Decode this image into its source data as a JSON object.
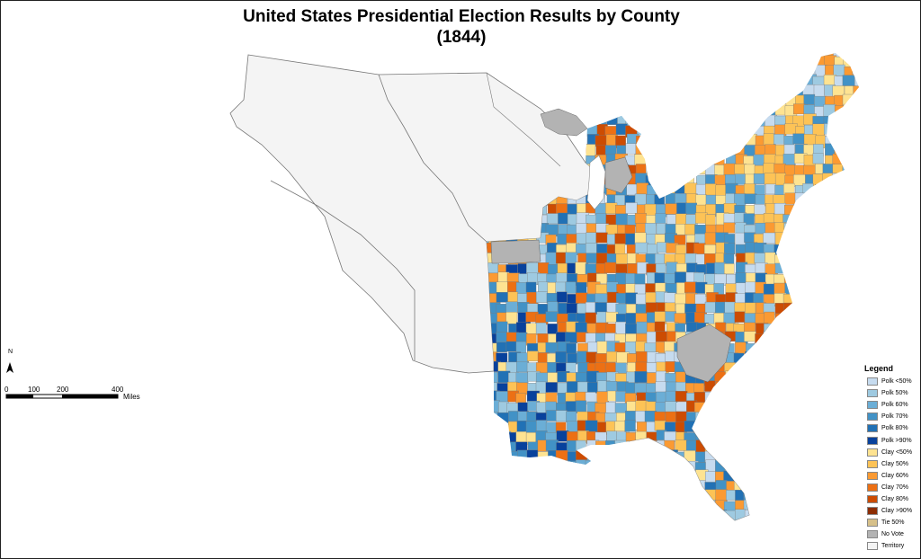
{
  "title": {
    "line1": "United States Presidential Election Results by County",
    "line2": "(1844)"
  },
  "legend": {
    "title": "Legend",
    "items": [
      {
        "label": "Polk <50%",
        "color": "#c6dbef"
      },
      {
        "label": "Polk 50%",
        "color": "#9ecae1"
      },
      {
        "label": "Polk 60%",
        "color": "#6baed6"
      },
      {
        "label": "Polk 70%",
        "color": "#4292c6"
      },
      {
        "label": "Polk 80%",
        "color": "#2171b5"
      },
      {
        "label": "Polk >90%",
        "color": "#08419c"
      },
      {
        "label": "Clay <50%",
        "color": "#fee391"
      },
      {
        "label": "Clay 50%",
        "color": "#fdc356"
      },
      {
        "label": "Clay 60%",
        "color": "#fb9a32"
      },
      {
        "label": "Clay 70%",
        "color": "#ec7014"
      },
      {
        "label": "Clay 80%",
        "color": "#cc4c02"
      },
      {
        "label": "Clay >90%",
        "color": "#8c2d04"
      },
      {
        "label": "Tie 50%",
        "color": "#d6c08a"
      },
      {
        "label": "No Vote",
        "color": "#b3b3b3"
      },
      {
        "label": "Territory",
        "color": "#f4f4f4"
      }
    ]
  },
  "scale_bar": {
    "ticks": [
      "0",
      "100",
      "200",
      "400"
    ],
    "unit": "Miles"
  },
  "north_arrow": {
    "label": "N"
  }
}
